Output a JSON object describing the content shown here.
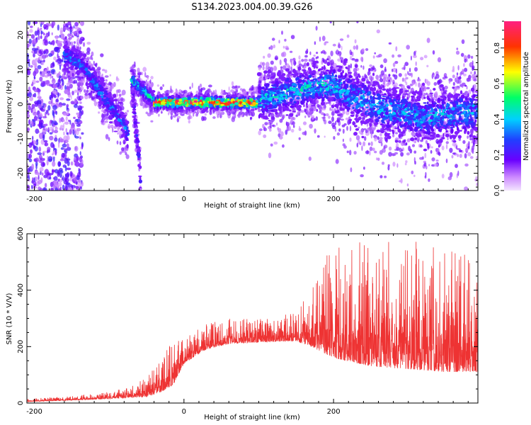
{
  "figure": {
    "title": "S134.2023.004.00.39.G26"
  },
  "chart_data": [
    {
      "type": "heatmap",
      "xlabel": "Height of straight line (km)",
      "ylabel": "Frequency (Hz)",
      "xlim": [
        -210,
        393
      ],
      "ylim": [
        -25,
        24
      ],
      "x_ticks": [
        -200,
        0,
        200
      ],
      "y_ticks": [
        -20,
        -10,
        0,
        10,
        20
      ],
      "grid": false,
      "colormap": "rainbow (violet-blue-cyan-green-yellow-red-magenta)",
      "colorbar": {
        "label": "Normalized spectral amplitude",
        "range": [
          0.0,
          0.95
        ],
        "ticks": [
          0.0,
          0.2,
          0.4,
          0.6,
          0.8
        ]
      },
      "ridge_segments": [
        {
          "x": [
            -160,
            -140,
            -125,
            -110,
            -100,
            -90,
            -80,
            -75
          ],
          "frequency": [
            14,
            12,
            8,
            3,
            0,
            -3,
            -6,
            -9
          ],
          "spread_hz": 2.5,
          "peak_amplitude": 0.35
        },
        {
          "x": [
            -70,
            -65,
            -60,
            -58
          ],
          "frequency": [
            6,
            -5,
            -16,
            -22
          ],
          "spread_hz": 2,
          "peak_amplitude": 0.25
        },
        {
          "x": [
            -70,
            -60,
            -50,
            -40
          ],
          "frequency": [
            7,
            5,
            3,
            1
          ],
          "spread_hz": 1.5,
          "peak_amplitude": 0.5
        },
        {
          "x": [
            -40,
            0,
            50,
            100
          ],
          "frequency": [
            0.5,
            0.5,
            0.5,
            0.3
          ],
          "spread_hz": 1.2,
          "peak_amplitude": 0.92
        },
        {
          "x": [
            100,
            150,
            200
          ],
          "frequency": [
            1,
            4,
            6
          ],
          "spread_hz": 4,
          "peak_amplitude": 0.45
        },
        {
          "x": [
            200,
            260,
            320,
            393
          ],
          "frequency": [
            5,
            -1,
            -4,
            -2
          ],
          "spread_hz": 5,
          "peak_amplitude": 0.4
        }
      ]
    },
    {
      "type": "line",
      "xlabel": "Height of straight line (km)",
      "ylabel": "SNR (10 * V/V)",
      "xlim": [
        -210,
        393
      ],
      "ylim": [
        0,
        600
      ],
      "x_ticks": [
        -200,
        0,
        200
      ],
      "y_ticks": [
        0,
        200,
        400,
        600
      ],
      "grid": false,
      "line_color": "#ee3333",
      "envelope": {
        "x": [
          -210,
          -150,
          -100,
          -70,
          -50,
          -30,
          -15,
          0,
          30,
          60,
          100,
          150,
          170,
          200,
          250,
          300,
          350,
          393
        ],
        "baseline": [
          5,
          10,
          15,
          20,
          20,
          40,
          60,
          140,
          190,
          210,
          215,
          220,
          200,
          160,
          130,
          120,
          110,
          110
        ],
        "peak": [
          15,
          25,
          40,
          60,
          90,
          160,
          230,
          230,
          280,
          300,
          300,
          320,
          420,
          600,
          560,
          590,
          550,
          520
        ]
      }
    }
  ]
}
